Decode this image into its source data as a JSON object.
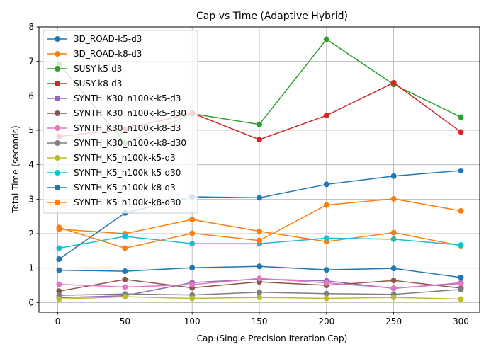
{
  "chart_data": {
    "type": "line",
    "title": "Cap vs Time (Adaptive Hybrid)",
    "xlabel": "Cap (Single Precision Iteration Cap)",
    "ylabel": "Total Time (seconds)",
    "x": [
      1,
      50,
      100,
      150,
      200,
      250,
      300
    ],
    "xticks": [
      0,
      50,
      100,
      150,
      200,
      250,
      300
    ],
    "yticks": [
      0,
      1,
      2,
      3,
      4,
      5,
      6,
      7,
      8
    ],
    "xlim": [
      -14,
      314
    ],
    "ylim": [
      -0.28,
      8.0
    ],
    "grid": true,
    "legend_position": "upper-left",
    "series": [
      {
        "name": "3D_ROAD-k5-d3",
        "color": "#1f77b4",
        "values": [
          0.94,
          0.91,
          1.01,
          1.05,
          0.95,
          0.99,
          0.73
        ]
      },
      {
        "name": "3D_ROAD-k8-d3",
        "color": "#ff7f0e",
        "values": [
          2.13,
          2.0,
          2.41,
          2.07,
          1.77,
          2.03,
          1.65
        ]
      },
      {
        "name": "SUSY-k5-d3",
        "color": "#2ca02c",
        "values": [
          6.92,
          4.63,
          5.48,
          5.17,
          7.64,
          6.33,
          5.38
        ]
      },
      {
        "name": "SUSY-k8-d3",
        "color": "#d62728",
        "values": [
          4.82,
          5.03,
          5.5,
          4.73,
          5.43,
          6.38,
          4.95
        ]
      },
      {
        "name": "SYNTH_K30_n100k-k5-d3",
        "color": "#9467bd",
        "values": [
          0.14,
          0.2,
          0.58,
          0.68,
          0.63,
          0.41,
          0.57
        ]
      },
      {
        "name": "SYNTH_K30_n100k-k5-d30",
        "color": "#8c564b",
        "values": [
          0.33,
          0.67,
          0.43,
          0.6,
          0.5,
          0.64,
          0.42
        ]
      },
      {
        "name": "SYNTH_K30_n100k-k8-d3",
        "color": "#e377c2",
        "values": [
          0.53,
          0.45,
          0.52,
          0.7,
          0.57,
          0.42,
          0.55
        ]
      },
      {
        "name": "SYNTH_K30_n100k-k8-d30",
        "color": "#7f7f7f",
        "values": [
          0.21,
          0.25,
          0.22,
          0.3,
          0.26,
          0.24,
          0.38
        ]
      },
      {
        "name": "SYNTH_K5_n100k-k5-d3",
        "color": "#bcbd22",
        "values": [
          0.1,
          0.17,
          0.12,
          0.15,
          0.12,
          0.15,
          0.1
        ]
      },
      {
        "name": "SYNTH_K5_n100k-k5-d30",
        "color": "#17becf",
        "values": [
          1.58,
          1.92,
          1.71,
          1.71,
          1.87,
          1.84,
          1.67
        ]
      },
      {
        "name": "SYNTH_K5_n100k-k8-d3",
        "color": "#1f77b4",
        "values": [
          1.26,
          2.6,
          3.07,
          3.04,
          3.43,
          3.67,
          3.83
        ]
      },
      {
        "name": "SYNTH_K5_n100k-k8-d30",
        "color": "#ff7f0e",
        "values": [
          2.18,
          1.58,
          2.01,
          1.8,
          2.83,
          3.01,
          2.66
        ]
      }
    ]
  }
}
